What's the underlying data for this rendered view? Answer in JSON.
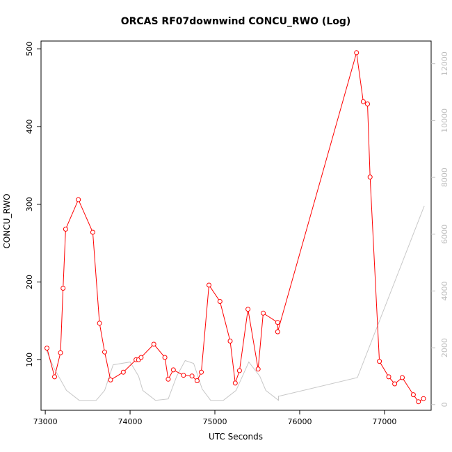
{
  "chart_data": {
    "type": "line",
    "title": "ORCAS RF07downwind CONCU_RWO (Log)",
    "xlabel": "UTC Seconds",
    "ylabel": "CONCU_RWO",
    "xlim": [
      72950,
      77550
    ],
    "ylim": [
      35,
      510
    ],
    "y2lim": [
      -200,
      12800
    ],
    "x_ticks": [
      73000,
      74000,
      75000,
      76000,
      77000
    ],
    "y_ticks": [
      100,
      200,
      300,
      400,
      500
    ],
    "y2_ticks": [
      0,
      2000,
      4000,
      6000,
      8000,
      10000,
      12000
    ],
    "grid": false,
    "series": [
      {
        "color": "#ff0000",
        "axis": "left",
        "markers": "open-circle",
        "x": [
          73020,
          73110,
          73180,
          73210,
          73240,
          73390,
          73560,
          73640,
          73700,
          73770,
          73920,
          74070,
          74100,
          74130,
          74280,
          74410,
          74450,
          74510,
          74630,
          74730,
          74790,
          74840,
          74930,
          75060,
          75180,
          75240,
          75290,
          75390,
          75510,
          75570,
          75740,
          75740,
          76670,
          76750,
          76800,
          76830,
          76940,
          77050,
          77120,
          77210,
          77340,
          77400,
          77460
        ],
        "values": [
          115,
          78,
          109,
          192,
          268,
          306,
          264,
          147,
          110,
          74,
          84,
          100,
          100,
          103,
          120,
          103,
          75,
          87,
          80,
          79,
          73,
          84,
          196,
          175,
          124,
          70,
          86,
          165,
          88,
          160,
          148,
          136,
          495,
          432,
          429,
          335,
          98,
          78,
          69,
          77,
          55,
          46,
          50
        ]
      },
      {
        "color": "#c8c8c8",
        "axis": "right",
        "markers": "none",
        "x": [
          73000,
          73100,
          73250,
          73400,
          73600,
          73700,
          73800,
          74000,
          74100,
          74150,
          74300,
          74450,
          74550,
          74650,
          74750,
          74850,
          74950,
          75100,
          75250,
          75400,
          75530,
          75600,
          75750,
          75750,
          75760,
          76680,
          77470
        ],
        "values": [
          2000,
          1300,
          500,
          150,
          150,
          500,
          1400,
          1500,
          1000,
          500,
          150,
          200,
          1000,
          1550,
          1450,
          550,
          150,
          150,
          500,
          1500,
          1000,
          500,
          150,
          300,
          300,
          950,
          7000
        ]
      }
    ]
  }
}
